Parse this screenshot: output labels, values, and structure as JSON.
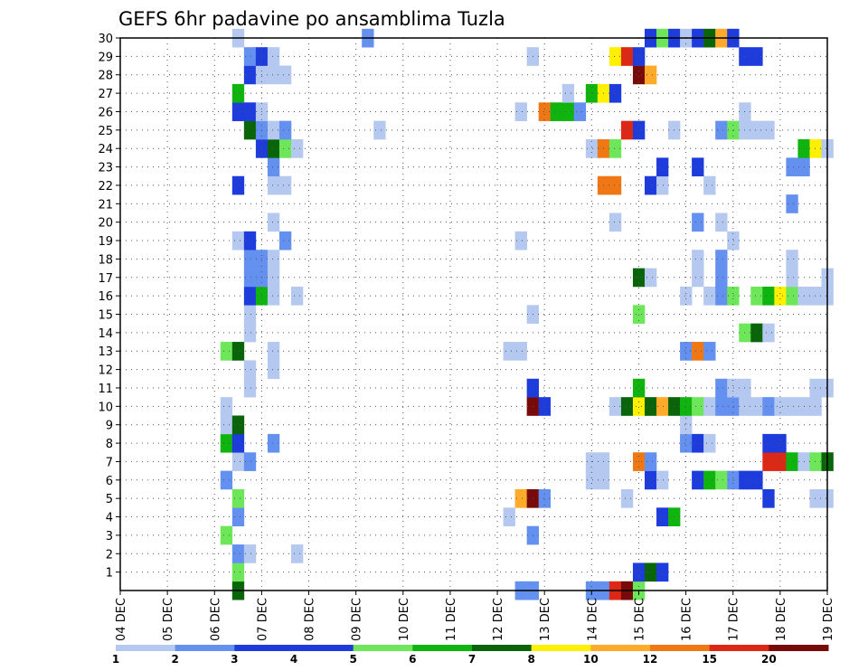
{
  "chart_data": {
    "type": "heatmap",
    "title": "GEFS 6hr padavine po ansamblima Tuzla",
    "y_ticks": [
      "1",
      "2",
      "3",
      "4",
      "5",
      "6",
      "7",
      "8",
      "9",
      "10",
      "11",
      "12",
      "13",
      "14",
      "15",
      "16",
      "17",
      "18",
      "19",
      "20",
      "21",
      "22",
      "23",
      "24",
      "25",
      "26",
      "27",
      "28",
      "29",
      "30"
    ],
    "x_ticks": [
      "04 DEC",
      "05 DEC",
      "06 DEC",
      "07 DEC",
      "08 DEC",
      "09 DEC",
      "10 DEC",
      "11 DEC",
      "12 DEC",
      "13 DEC",
      "14 DEC",
      "15 DEC",
      "16 DEC",
      "17 DEC",
      "18 DEC",
      "19 DEC"
    ],
    "x_range_days": [
      4,
      19
    ],
    "y_range": [
      0,
      30
    ],
    "grid": true,
    "legend": {
      "position": "bottom",
      "labels": [
        "1",
        "2",
        "3",
        "4",
        "5",
        "6",
        "7",
        "8",
        "10",
        "12",
        "15",
        "20"
      ],
      "colors": [
        "#b4c8f0",
        "#6490f0",
        "#1e3cdc",
        "#1e3cdc",
        "#6ee65a",
        "#0fb40f",
        "#0a640a",
        "#fff000",
        "#ffaa28",
        "#f07814",
        "#dc2814",
        "#780a0a"
      ]
    },
    "color_scale": [
      "#b4c8f0",
      "#6490f0",
      "#1e3cdc",
      "#6ee65a",
      "#0fb40f",
      "#0a640a",
      "#fff000",
      "#ffaa28",
      "#f07814",
      "#dc2814",
      "#780a0a"
    ],
    "cells": [
      [
        6.5,
        0,
        5
      ],
      [
        12.5,
        0,
        1
      ],
      [
        12.75,
        0,
        1
      ],
      [
        14,
        0,
        1
      ],
      [
        14.25,
        0,
        1
      ],
      [
        14.5,
        0,
        9
      ],
      [
        14.75,
        0,
        10
      ],
      [
        15,
        0,
        3
      ],
      [
        6.5,
        1,
        3
      ],
      [
        15,
        1,
        2
      ],
      [
        15.25,
        1,
        5
      ],
      [
        15.5,
        1,
        2
      ],
      [
        6.5,
        2,
        1
      ],
      [
        6.75,
        2,
        0
      ],
      [
        7.75,
        2,
        0
      ],
      [
        6.25,
        3,
        3
      ],
      [
        12.75,
        3,
        1
      ],
      [
        6.5,
        4,
        1
      ],
      [
        12.25,
        4,
        0
      ],
      [
        15.5,
        4,
        2
      ],
      [
        15.75,
        4,
        4
      ],
      [
        6.5,
        5,
        3
      ],
      [
        12.5,
        5,
        7
      ],
      [
        12.75,
        5,
        10
      ],
      [
        13,
        5,
        1
      ],
      [
        14.75,
        5,
        0
      ],
      [
        17.75,
        5,
        2
      ],
      [
        18.75,
        5,
        0
      ],
      [
        19,
        5,
        0
      ],
      [
        6.25,
        6,
        1
      ],
      [
        14,
        6,
        0
      ],
      [
        14.25,
        6,
        0
      ],
      [
        15.25,
        6,
        2
      ],
      [
        15.5,
        6,
        0
      ],
      [
        16.25,
        6,
        2
      ],
      [
        16.5,
        6,
        4
      ],
      [
        16.75,
        6,
        3
      ],
      [
        17,
        6,
        1
      ],
      [
        17.25,
        6,
        2
      ],
      [
        17.5,
        6,
        2
      ],
      [
        6.5,
        7,
        0
      ],
      [
        6.75,
        7,
        1
      ],
      [
        14,
        7,
        0
      ],
      [
        14.25,
        7,
        0
      ],
      [
        15,
        7,
        8
      ],
      [
        15.25,
        7,
        1
      ],
      [
        17.75,
        7,
        9
      ],
      [
        18,
        7,
        9
      ],
      [
        18.25,
        7,
        4
      ],
      [
        18.5,
        7,
        0
      ],
      [
        18.75,
        7,
        3
      ],
      [
        19,
        7,
        5
      ],
      [
        6.25,
        8,
        4
      ],
      [
        6.5,
        8,
        2
      ],
      [
        7.25,
        8,
        1
      ],
      [
        16,
        8,
        1
      ],
      [
        16.25,
        8,
        2
      ],
      [
        16.5,
        8,
        0
      ],
      [
        17.75,
        8,
        2
      ],
      [
        18,
        8,
        2
      ],
      [
        6.25,
        9,
        0
      ],
      [
        6.5,
        9,
        5
      ],
      [
        16,
        9,
        0
      ],
      [
        6.25,
        10,
        0
      ],
      [
        12.75,
        10,
        10
      ],
      [
        13,
        10,
        2
      ],
      [
        14.5,
        10,
        0
      ],
      [
        14.75,
        10,
        5
      ],
      [
        15,
        10,
        6
      ],
      [
        15.25,
        10,
        5
      ],
      [
        15.5,
        10,
        7
      ],
      [
        15.75,
        10,
        5
      ],
      [
        16,
        10,
        4
      ],
      [
        16.25,
        10,
        3
      ],
      [
        16.5,
        10,
        0
      ],
      [
        16.75,
        10,
        1
      ],
      [
        17,
        10,
        1
      ],
      [
        17.25,
        10,
        0
      ],
      [
        17.5,
        10,
        0
      ],
      [
        17.75,
        10,
        1
      ],
      [
        18,
        10,
        0
      ],
      [
        18.25,
        10,
        0
      ],
      [
        18.5,
        10,
        0
      ],
      [
        18.75,
        10,
        0
      ],
      [
        6.75,
        11,
        0
      ],
      [
        12.75,
        11,
        2
      ],
      [
        15,
        11,
        4
      ],
      [
        16.75,
        11,
        1
      ],
      [
        17,
        11,
        0
      ],
      [
        17.25,
        11,
        0
      ],
      [
        18.75,
        11,
        0
      ],
      [
        19,
        11,
        0
      ],
      [
        6.75,
        12,
        0
      ],
      [
        7.25,
        12,
        0
      ],
      [
        6.25,
        13,
        3
      ],
      [
        6.5,
        13,
        5
      ],
      [
        7.25,
        13,
        0
      ],
      [
        12.25,
        13,
        0
      ],
      [
        12.5,
        13,
        0
      ],
      [
        16,
        13,
        1
      ],
      [
        16.25,
        13,
        8
      ],
      [
        16.5,
        13,
        1
      ],
      [
        6.75,
        14,
        0
      ],
      [
        17.25,
        14,
        3
      ],
      [
        17.5,
        14,
        5
      ],
      [
        17.75,
        14,
        0
      ],
      [
        6.75,
        15,
        0
      ],
      [
        12.75,
        15,
        0
      ],
      [
        15,
        15,
        3
      ],
      [
        6.75,
        16,
        2
      ],
      [
        7,
        16,
        4
      ],
      [
        7.25,
        16,
        0
      ],
      [
        7.75,
        16,
        0
      ],
      [
        16,
        16,
        0
      ],
      [
        16.5,
        16,
        0
      ],
      [
        16.75,
        16,
        1
      ],
      [
        17,
        16,
        3
      ],
      [
        17.5,
        16,
        3
      ],
      [
        17.75,
        16,
        4
      ],
      [
        18,
        16,
        6
      ],
      [
        18.25,
        16,
        3
      ],
      [
        18.5,
        16,
        0
      ],
      [
        18.75,
        16,
        0
      ],
      [
        19,
        16,
        0
      ],
      [
        6.75,
        17,
        1
      ],
      [
        7,
        17,
        1
      ],
      [
        7.25,
        17,
        0
      ],
      [
        15,
        17,
        5
      ],
      [
        15.25,
        17,
        0
      ],
      [
        16.25,
        17,
        0
      ],
      [
        16.75,
        17,
        1
      ],
      [
        18.25,
        17,
        0
      ],
      [
        19,
        17,
        0
      ],
      [
        6.75,
        18,
        1
      ],
      [
        7,
        18,
        1
      ],
      [
        7.25,
        18,
        0
      ],
      [
        16.25,
        18,
        0
      ],
      [
        16.75,
        18,
        1
      ],
      [
        18.25,
        18,
        0
      ],
      [
        6.5,
        19,
        0
      ],
      [
        6.75,
        19,
        2
      ],
      [
        7.5,
        19,
        1
      ],
      [
        12.5,
        19,
        0
      ],
      [
        17,
        19,
        0
      ],
      [
        7.25,
        20,
        0
      ],
      [
        14.5,
        20,
        0
      ],
      [
        16.25,
        20,
        1
      ],
      [
        16.75,
        20,
        0
      ],
      [
        18.25,
        21,
        1
      ],
      [
        6.5,
        22,
        2
      ],
      [
        7.25,
        22,
        0
      ],
      [
        7.5,
        22,
        0
      ],
      [
        14.25,
        22,
        8
      ],
      [
        14.5,
        22,
        8
      ],
      [
        15.25,
        22,
        2
      ],
      [
        15.5,
        22,
        0
      ],
      [
        16.5,
        22,
        0
      ],
      [
        7.25,
        23,
        1
      ],
      [
        15.5,
        23,
        2
      ],
      [
        16.25,
        23,
        2
      ],
      [
        18.25,
        23,
        1
      ],
      [
        18.5,
        23,
        1
      ],
      [
        7,
        24,
        2
      ],
      [
        7.25,
        24,
        5
      ],
      [
        7.5,
        24,
        3
      ],
      [
        7.75,
        24,
        0
      ],
      [
        14,
        24,
        0
      ],
      [
        14.25,
        24,
        8
      ],
      [
        14.5,
        24,
        3
      ],
      [
        18.5,
        24,
        4
      ],
      [
        18.75,
        24,
        6
      ],
      [
        19,
        24,
        0
      ],
      [
        6.75,
        25,
        5
      ],
      [
        7,
        25,
        1
      ],
      [
        7.25,
        25,
        0
      ],
      [
        7.5,
        25,
        1
      ],
      [
        9.5,
        25,
        0
      ],
      [
        14.75,
        25,
        9
      ],
      [
        15,
        25,
        2
      ],
      [
        15.75,
        25,
        0
      ],
      [
        16.75,
        25,
        1
      ],
      [
        17,
        25,
        3
      ],
      [
        17.25,
        25,
        0
      ],
      [
        17.5,
        25,
        0
      ],
      [
        17.75,
        25,
        0
      ],
      [
        6.5,
        26,
        2
      ],
      [
        6.75,
        26,
        2
      ],
      [
        7,
        26,
        0
      ],
      [
        12.5,
        26,
        0
      ],
      [
        13,
        26,
        8
      ],
      [
        13.25,
        26,
        4
      ],
      [
        13.5,
        26,
        4
      ],
      [
        13.75,
        26,
        1
      ],
      [
        17.25,
        26,
        0
      ],
      [
        6.5,
        27,
        4
      ],
      [
        13.5,
        27,
        0
      ],
      [
        14,
        27,
        4
      ],
      [
        14.25,
        27,
        6
      ],
      [
        14.5,
        27,
        2
      ],
      [
        6.75,
        28,
        2
      ],
      [
        7,
        28,
        0
      ],
      [
        7.25,
        28,
        0
      ],
      [
        7.5,
        28,
        0
      ],
      [
        15,
        28,
        10
      ],
      [
        15.25,
        28,
        7
      ],
      [
        6.75,
        29,
        1
      ],
      [
        7,
        29,
        2
      ],
      [
        7.25,
        29,
        0
      ],
      [
        12.75,
        29,
        0
      ],
      [
        14.5,
        29,
        6
      ],
      [
        14.75,
        29,
        9
      ],
      [
        15,
        29,
        2
      ],
      [
        17.25,
        29,
        2
      ],
      [
        17.5,
        29,
        2
      ],
      [
        6.5,
        30,
        0
      ],
      [
        9.25,
        30,
        1
      ],
      [
        15.25,
        30,
        2
      ],
      [
        15.5,
        30,
        3
      ],
      [
        15.75,
        30,
        2
      ],
      [
        16,
        30,
        0
      ],
      [
        16.25,
        30,
        2
      ],
      [
        16.5,
        30,
        5
      ],
      [
        16.75,
        30,
        7
      ],
      [
        17,
        30,
        2
      ]
    ]
  }
}
